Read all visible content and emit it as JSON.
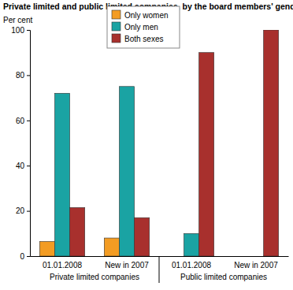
{
  "chart_data": {
    "type": "bar",
    "title": "Private limited and public limited companies, by the board members' gender. Per cent",
    "y_label": "Per cent",
    "categories": [
      "01.01.2008",
      "New in 2007",
      "01.01.2008",
      "New in 2007"
    ],
    "category_groups": [
      "Private limited companies",
      "Public limited companies"
    ],
    "series": [
      {
        "name": "Only women",
        "color": "#f39c23",
        "values": [
          6.5,
          8,
          0,
          0
        ]
      },
      {
        "name": "Only men",
        "color": "#1aa3a3",
        "values": [
          72,
          75,
          10,
          0
        ]
      },
      {
        "name": "Both sexes",
        "color": "#a8302d",
        "values": [
          21.5,
          17,
          90,
          100
        ]
      }
    ],
    "ylim": [
      0,
      100
    ],
    "yticks": [
      0,
      20,
      40,
      60,
      80,
      100
    ],
    "grid": false,
    "legend": "top"
  }
}
